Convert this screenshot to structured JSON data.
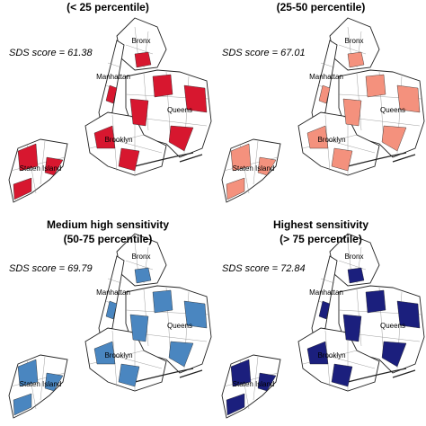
{
  "panels": [
    {
      "title_lines": [
        "(< 25 percentile)"
      ],
      "score": "SDS score = 61.38",
      "color": "#d7172f",
      "labels": [
        "Bronx",
        "Manhattan",
        "Queens",
        "Brooklyn",
        "Staten Island"
      ]
    },
    {
      "title_lines": [
        "(25-50 percentile)"
      ],
      "score": "SDS score = 67.01",
      "color": "#f4917d",
      "labels": [
        "Bronx",
        "Manhattan",
        "Queens",
        "Brooklyn",
        "Staten Island"
      ]
    },
    {
      "title_lines": [
        "Medium high sensitivity",
        "(50-75 percentile)"
      ],
      "score": "SDS score = 69.79",
      "color": "#4a86c0",
      "labels": [
        "Bronx",
        "Manhattan",
        "Queens",
        "Brooklyn",
        "Staten Island"
      ]
    },
    {
      "title_lines": [
        "Highest sensitivity",
        "(> 75 percentile)"
      ],
      "score": "SDS score = 72.84",
      "color": "#1b1f7d",
      "labels": [
        "Bronx",
        "Manhattan",
        "Queens",
        "Brooklyn",
        "Staten Island"
      ]
    }
  ]
}
